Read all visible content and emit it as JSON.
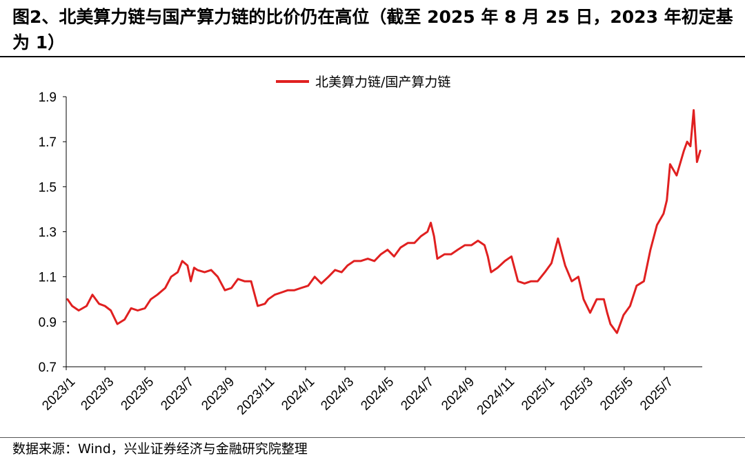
{
  "header": {
    "title": "图2、北美算力链与国产算力链的比价仍在高位（截至 2025 年 8 月 25 日，2023 年初定基为 1）"
  },
  "footer": {
    "source": "数据来源：Wind，兴业证券经济与金融研究院整理"
  },
  "colors": {
    "series": "#e02020",
    "axis": "#000000"
  },
  "chart_data": {
    "type": "line",
    "title": "图2、北美算力链与国产算力链的比价仍在高位（截至 2025 年 8 月 25 日，2023 年初定基为 1）",
    "xlabel": "",
    "ylabel": "",
    "ylim": [
      0.7,
      1.9
    ],
    "yticks": [
      0.7,
      0.9,
      1.1,
      1.3,
      1.5,
      1.7,
      1.9
    ],
    "xticks": [
      "2023/1",
      "2023/3",
      "2023/5",
      "2023/7",
      "2023/9",
      "2023/11",
      "2024/1",
      "2024/3",
      "2024/5",
      "2024/7",
      "2024/9",
      "2024/11",
      "2025/1",
      "2025/3",
      "2025/5",
      "2025/7"
    ],
    "grid": false,
    "legend": "top-center",
    "series": [
      {
        "name": "北美算力链/国产算力链",
        "x": [
          "2023-01-03",
          "2023-01-10",
          "2023-01-20",
          "2023-02-01",
          "2023-02-10",
          "2023-02-20",
          "2023-03-01",
          "2023-03-10",
          "2023-03-20",
          "2023-03-31",
          "2023-04-10",
          "2023-04-20",
          "2023-05-01",
          "2023-05-10",
          "2023-05-20",
          "2023-06-01",
          "2023-06-10",
          "2023-06-20",
          "2023-06-27",
          "2023-07-05",
          "2023-07-10",
          "2023-07-15",
          "2023-07-20",
          "2023-07-31",
          "2023-08-10",
          "2023-08-20",
          "2023-08-31",
          "2023-09-10",
          "2023-09-20",
          "2023-09-30",
          "2023-10-10",
          "2023-10-20",
          "2023-10-31",
          "2023-11-05",
          "2023-11-15",
          "2023-11-25",
          "2023-12-05",
          "2023-12-15",
          "2023-12-25",
          "2024-01-05",
          "2024-01-15",
          "2024-01-25",
          "2024-02-05",
          "2024-02-15",
          "2024-02-25",
          "2024-03-05",
          "2024-03-15",
          "2024-03-25",
          "2024-04-05",
          "2024-04-15",
          "2024-04-25",
          "2024-05-05",
          "2024-05-15",
          "2024-05-25",
          "2024-06-05",
          "2024-06-15",
          "2024-06-25",
          "2024-07-05",
          "2024-07-10",
          "2024-07-15",
          "2024-07-20",
          "2024-07-31",
          "2024-08-10",
          "2024-08-20",
          "2024-08-31",
          "2024-09-10",
          "2024-09-20",
          "2024-09-30",
          "2024-10-05",
          "2024-10-10",
          "2024-10-20",
          "2024-10-31",
          "2024-11-10",
          "2024-11-20",
          "2024-11-30",
          "2024-12-10",
          "2024-12-20",
          "2024-12-31",
          "2025-01-10",
          "2025-01-20",
          "2025-01-31",
          "2025-02-10",
          "2025-02-20",
          "2025-02-28",
          "2025-03-10",
          "2025-03-20",
          "2025-03-31",
          "2025-04-05",
          "2025-04-10",
          "2025-04-20",
          "2025-04-30",
          "2025-05-10",
          "2025-05-20",
          "2025-05-31",
          "2025-06-10",
          "2025-06-20",
          "2025-06-30",
          "2025-07-05",
          "2025-07-10",
          "2025-07-20",
          "2025-07-31",
          "2025-08-05",
          "2025-08-10",
          "2025-08-15",
          "2025-08-20",
          "2025-08-25"
        ],
        "values": [
          1.0,
          0.97,
          0.95,
          0.97,
          1.02,
          0.98,
          0.97,
          0.95,
          0.89,
          0.91,
          0.96,
          0.95,
          0.96,
          1.0,
          1.02,
          1.05,
          1.1,
          1.12,
          1.17,
          1.15,
          1.08,
          1.14,
          1.13,
          1.12,
          1.13,
          1.1,
          1.04,
          1.05,
          1.09,
          1.08,
          1.08,
          0.97,
          0.98,
          1.0,
          1.02,
          1.03,
          1.04,
          1.04,
          1.05,
          1.06,
          1.1,
          1.07,
          1.1,
          1.13,
          1.12,
          1.15,
          1.17,
          1.17,
          1.18,
          1.17,
          1.2,
          1.22,
          1.19,
          1.23,
          1.25,
          1.25,
          1.28,
          1.3,
          1.34,
          1.28,
          1.18,
          1.2,
          1.2,
          1.22,
          1.24,
          1.24,
          1.26,
          1.24,
          1.19,
          1.12,
          1.14,
          1.17,
          1.19,
          1.08,
          1.07,
          1.08,
          1.08,
          1.12,
          1.16,
          1.27,
          1.15,
          1.08,
          1.1,
          1.0,
          0.94,
          1.0,
          1.0,
          0.94,
          0.89,
          0.85,
          0.93,
          0.97,
          1.06,
          1.08,
          1.22,
          1.33,
          1.38,
          1.44,
          1.6,
          1.55,
          1.66,
          1.7,
          1.68,
          1.84,
          1.61,
          1.66
        ]
      }
    ]
  }
}
